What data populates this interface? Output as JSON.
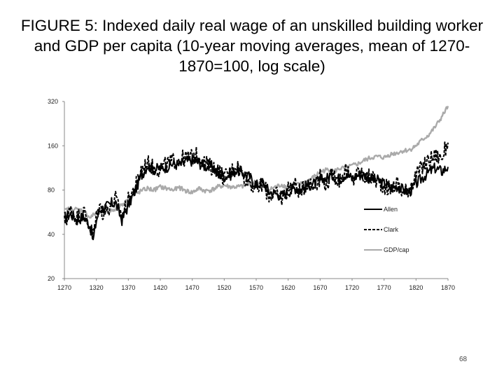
{
  "slide": {
    "title": "FIGURE 5: Indexed daily real wage of an unskilled building worker and GDP per capita (10-year moving averages, mean of 1270-1870=100, log scale)",
    "page_number": "68"
  },
  "chart_data": {
    "type": "line",
    "title": "FIGURE 5: Indexed daily real wage of an unskilled building worker and GDP per capita (10-year moving averages, mean of 1270-1870=100, log scale)",
    "xlabel": "",
    "ylabel": "",
    "xlim": [
      1270,
      1870
    ],
    "ylim": [
      20,
      320
    ],
    "yscale": "log",
    "grid": false,
    "legend_position": "right-middle",
    "x_ticks": [
      1270,
      1320,
      1370,
      1420,
      1470,
      1520,
      1570,
      1620,
      1670,
      1720,
      1770,
      1820,
      1870
    ],
    "y_ticks": [
      20,
      40,
      80,
      160,
      320
    ],
    "series": [
      {
        "name": "Allen",
        "style": "solid",
        "color": "#000000",
        "x": [
          1270,
          1280,
          1290,
          1300,
          1310,
          1315,
          1320,
          1325,
          1330,
          1340,
          1350,
          1355,
          1360,
          1370,
          1380,
          1390,
          1400,
          1410,
          1420,
          1430,
          1440,
          1450,
          1460,
          1470,
          1480,
          1490,
          1500,
          1510,
          1520,
          1530,
          1540,
          1550,
          1560,
          1570,
          1580,
          1590,
          1600,
          1610,
          1620,
          1630,
          1640,
          1650,
          1660,
          1670,
          1680,
          1690,
          1700,
          1710,
          1720,
          1730,
          1740,
          1750,
          1760,
          1770,
          1780,
          1790,
          1800,
          1810,
          1820,
          1830,
          1840,
          1850,
          1860,
          1870
        ],
        "y": [
          52,
          55,
          50,
          53,
          46,
          36,
          50,
          58,
          60,
          63,
          66,
          57,
          50,
          63,
          78,
          100,
          118,
          110,
          113,
          115,
          121,
          118,
          125,
          127,
          123,
          116,
          116,
          104,
          99,
          102,
          110,
          104,
          98,
          86,
          91,
          78,
          76,
          73,
          78,
          83,
          81,
          86,
          88,
          93,
          96,
          101,
          95,
          103,
          96,
          102,
          101,
          95,
          93,
          88,
          83,
          85,
          80,
          78,
          88,
          97,
          106,
          113,
          107,
          115
        ]
      },
      {
        "name": "Clark",
        "style": "dashed",
        "color": "#000000",
        "x": [
          1270,
          1280,
          1290,
          1300,
          1310,
          1315,
          1320,
          1325,
          1330,
          1340,
          1350,
          1355,
          1360,
          1370,
          1380,
          1390,
          1400,
          1410,
          1420,
          1430,
          1440,
          1450,
          1460,
          1470,
          1480,
          1490,
          1500,
          1510,
          1520,
          1530,
          1540,
          1550,
          1560,
          1570,
          1580,
          1590,
          1600,
          1610,
          1620,
          1630,
          1640,
          1650,
          1660,
          1670,
          1680,
          1690,
          1700,
          1710,
          1720,
          1730,
          1740,
          1750,
          1760,
          1770,
          1780,
          1790,
          1800,
          1810,
          1820,
          1830,
          1840,
          1850,
          1860,
          1870
        ],
        "y": [
          48,
          58,
          52,
          57,
          44,
          40,
          52,
          63,
          56,
          61,
          70,
          60,
          54,
          68,
          83,
          110,
          122,
          113,
          111,
          120,
          127,
          130,
          132,
          135,
          140,
          122,
          114,
          110,
          97,
          107,
          118,
          100,
          92,
          80,
          88,
          73,
          75,
          70,
          82,
          88,
          76,
          92,
          84,
          98,
          88,
          103,
          92,
          110,
          90,
          108,
          97,
          98,
          91,
          86,
          80,
          90,
          76,
          84,
          100,
          115,
          128,
          138,
          132,
          168
        ]
      },
      {
        "name": "GDP/cap",
        "style": "solid",
        "color": "#aaaaaa",
        "x": [
          1270,
          1280,
          1290,
          1300,
          1310,
          1320,
          1330,
          1340,
          1350,
          1360,
          1370,
          1380,
          1390,
          1400,
          1410,
          1420,
          1430,
          1440,
          1450,
          1460,
          1470,
          1480,
          1490,
          1500,
          1510,
          1520,
          1530,
          1540,
          1550,
          1560,
          1570,
          1580,
          1590,
          1600,
          1610,
          1620,
          1630,
          1640,
          1650,
          1660,
          1670,
          1680,
          1690,
          1700,
          1710,
          1720,
          1730,
          1740,
          1750,
          1760,
          1770,
          1780,
          1790,
          1800,
          1810,
          1820,
          1830,
          1840,
          1850,
          1860,
          1870
        ],
        "y": [
          58,
          60,
          59,
          58,
          52,
          56,
          59,
          57,
          60,
          64,
          68,
          74,
          79,
          82,
          80,
          84,
          82,
          80,
          83,
          79,
          77,
          82,
          79,
          80,
          84,
          86,
          84,
          84,
          85,
          88,
          91,
          85,
          80,
          84,
          87,
          83,
          86,
          88,
          92,
          98,
          106,
          110,
          106,
          112,
          113,
          117,
          121,
          128,
          133,
          135,
          133,
          140,
          143,
          148,
          150,
          160,
          176,
          190,
          215,
          250,
          298
        ]
      }
    ]
  }
}
